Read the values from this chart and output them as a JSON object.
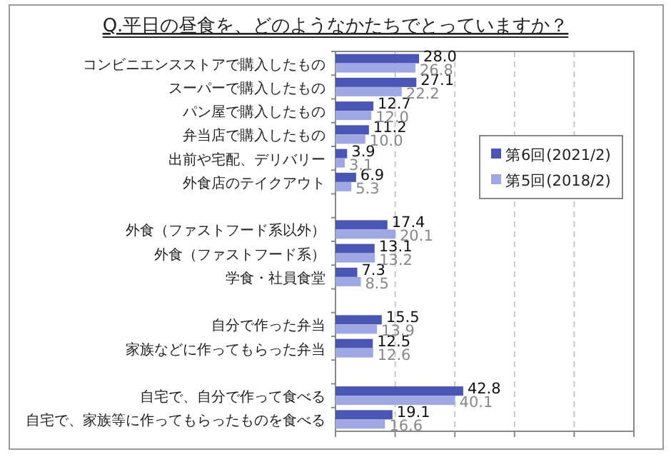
{
  "chart_data": {
    "type": "bar",
    "orientation": "horizontal",
    "title": "Q.平日の昼食を、どのようなかたちでとっていますか？",
    "categories": [
      "コンビニエンスストアで購入したもの",
      "スーパーで購入したもの",
      "パン屋で購入したもの",
      "弁当店で購入したもの",
      "出前や宅配、デリバリー",
      "外食店のテイクアウト",
      null,
      "外食（ファストフード系以外）",
      "外食（ファストフード系）",
      "学食・社員食堂",
      null,
      "自分で作った弁当",
      "家族などに作ってもらった弁当",
      null,
      "自宅で、自分で作って食べる",
      "自宅で、家族等に作ってもらったものを食べる"
    ],
    "series": [
      {
        "name": "第6回(2021/2)",
        "color": "#4a56b4",
        "values": [
          28.0,
          27.1,
          12.7,
          11.2,
          3.9,
          6.9,
          null,
          17.4,
          13.1,
          7.3,
          null,
          15.5,
          12.5,
          null,
          42.8,
          19.1
        ],
        "value_labels": [
          "28.0",
          "27.1",
          "12.7",
          "11.2",
          "3.9",
          "6.9",
          null,
          "17.4",
          "13.1",
          "7.3",
          null,
          "15.5",
          "12.5",
          null,
          "42.8",
          "19.1"
        ]
      },
      {
        "name": "第5回(2018/2)",
        "color": "#a0a8e4",
        "values": [
          26.8,
          22.2,
          12.0,
          10.0,
          3.1,
          5.3,
          null,
          20.1,
          13.2,
          8.5,
          null,
          13.9,
          12.6,
          null,
          40.1,
          16.6
        ],
        "value_labels": [
          "26.8",
          "22.2",
          "12.0",
          "10.0",
          "3.1",
          "5.3",
          null,
          "20.1",
          "13.2",
          "8.5",
          null,
          "13.9",
          "12.6",
          null,
          "40.1",
          "16.6"
        ]
      }
    ],
    "xlim": [
      0,
      100
    ],
    "xticks": [
      {
        "value": 0,
        "label": null
      },
      {
        "value": 20,
        "label": null
      },
      {
        "value": 40,
        "label": null
      },
      {
        "value": 60,
        "label": null
      },
      {
        "value": 80,
        "label": null
      },
      {
        "value": 100,
        "label": null
      }
    ],
    "tick_labels": "y",
    "grid": "x",
    "legend": "right"
  }
}
